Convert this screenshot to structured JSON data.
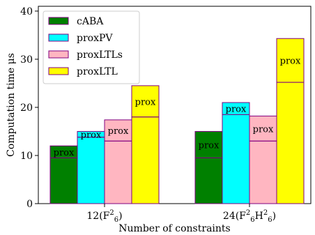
{
  "chart_data": {
    "type": "bar",
    "stacked_split": true,
    "categories": [
      {
        "label": "12(F",
        "sup1": "2",
        "sub1": "6",
        "tail": ")"
      },
      {
        "label": "24(F",
        "sup1": "2",
        "sub1": "6",
        "mid": "H",
        "sup2": "2",
        "sub2": "6",
        "tail": ")"
      }
    ],
    "series": [
      {
        "name": "cABA",
        "color": "#008000",
        "values": [
          12.0,
          15.0
        ],
        "base": [
          9.5,
          9.5
        ]
      },
      {
        "name": "proxPV",
        "color": "#00FFFF",
        "values": [
          15.0,
          21.0
        ],
        "base": [
          13.8,
          18.5
        ]
      },
      {
        "name": "proxLTLs",
        "color": "#FFB6C1",
        "values": [
          17.4,
          18.2
        ],
        "base": [
          13.0,
          13.0
        ]
      },
      {
        "name": "proxLTL",
        "color": "#FFFF00",
        "values": [
          24.5,
          34.3
        ],
        "base": [
          18.0,
          25.2
        ]
      }
    ],
    "segment_label": "prox",
    "edge_color": "#800080",
    "ylim": [
      0,
      41
    ],
    "yticks": [
      0,
      10,
      20,
      30,
      40
    ],
    "ylabel": "Computation time μs",
    "xlabel": "Number of constraints",
    "legend_position": "top-left",
    "grid": false
  }
}
